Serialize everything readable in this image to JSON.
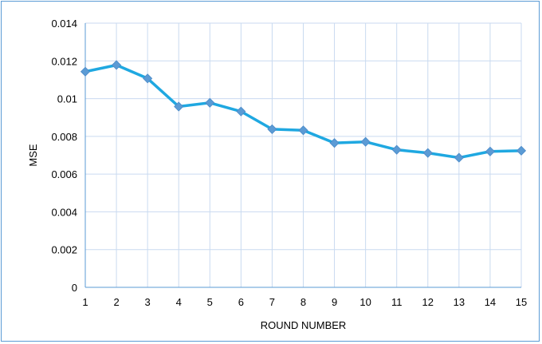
{
  "chart_data": {
    "type": "line",
    "title": "",
    "xlabel": "ROUND NUMBER",
    "ylabel": "MSE",
    "x": [
      1,
      2,
      3,
      4,
      5,
      6,
      7,
      8,
      9,
      10,
      11,
      12,
      13,
      14,
      15
    ],
    "series": [
      {
        "values": [
          0.01143,
          0.01178,
          0.01107,
          0.00958,
          0.00978,
          0.00932,
          0.00838,
          0.00832,
          0.00765,
          0.00771,
          0.00729,
          0.00712,
          0.00687,
          0.0072,
          0.00724
        ],
        "color": "#1fa8e1",
        "marker_color": "#5b9bd5",
        "marker": "diamond"
      }
    ],
    "ylim": [
      0,
      0.014
    ],
    "yticks": [
      "0",
      "0.002",
      "0.004",
      "0.006",
      "0.008",
      "0.01",
      "0.012",
      "0.014"
    ],
    "xticks": [
      "1",
      "2",
      "3",
      "4",
      "5",
      "6",
      "7",
      "8",
      "9",
      "10",
      "11",
      "12",
      "13",
      "14",
      "15"
    ],
    "grid": true,
    "legend": "none",
    "colors": {
      "grid": "#c9daf0",
      "axis": "#5b9bd5",
      "frame": "#5b9bd5"
    }
  }
}
